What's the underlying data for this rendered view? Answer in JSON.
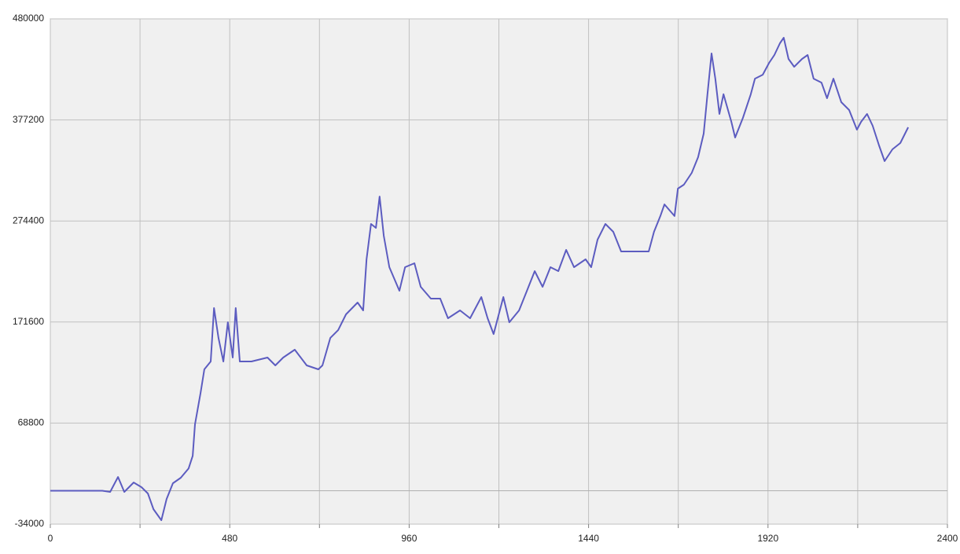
{
  "chart_data": {
    "type": "line",
    "x": [
      0,
      139,
      160,
      181,
      198,
      223,
      244,
      261,
      276,
      297,
      311,
      328,
      349,
      370,
      381,
      387,
      402,
      412,
      429,
      438,
      450,
      463,
      475,
      488,
      496,
      507,
      538,
      581,
      602,
      623,
      654,
      686,
      717,
      728,
      749,
      770,
      791,
      822,
      837,
      846,
      858,
      871,
      881,
      892,
      907,
      934,
      949,
      974,
      991,
      1018,
      1043,
      1064,
      1096,
      1123,
      1153,
      1170,
      1186,
      1212,
      1228,
      1254,
      1275,
      1296,
      1317,
      1338,
      1359,
      1380,
      1401,
      1432,
      1447,
      1464,
      1485,
      1506,
      1527,
      1559,
      1601,
      1615,
      1632,
      1643,
      1670,
      1679,
      1695,
      1716,
      1733,
      1748,
      1758,
      1769,
      1779,
      1790,
      1801,
      1822,
      1832,
      1853,
      1874,
      1885,
      1906,
      1923,
      1937,
      1952,
      1962,
      1975,
      1990,
      2011,
      2026,
      2042,
      2063,
      2078,
      2095,
      2116,
      2137,
      2158,
      2169,
      2185,
      2200,
      2217,
      2232,
      2253,
      2274,
      2295
    ],
    "values": [
      0,
      0,
      -1200,
      14000,
      -1200,
      8400,
      3600,
      -2800,
      -18800,
      -30000,
      -8400,
      7600,
      13200,
      22700,
      35500,
      67500,
      99500,
      123500,
      131500,
      185800,
      155400,
      131500,
      171400,
      135500,
      185800,
      131500,
      131500,
      135500,
      127500,
      135500,
      143500,
      127500,
      123500,
      127500,
      155400,
      163400,
      179400,
      191400,
      183400,
      235400,
      271400,
      267400,
      299300,
      259400,
      227400,
      203400,
      227400,
      231400,
      207400,
      195400,
      195400,
      175400,
      183400,
      175400,
      197000,
      175400,
      159400,
      197000,
      171400,
      183400,
      203400,
      223400,
      207400,
      227400,
      223400,
      245000,
      227400,
      235400,
      227400,
      255400,
      271400,
      263400,
      243400,
      243400,
      243400,
      263400,
      279400,
      291300,
      279400,
      307300,
      311300,
      323300,
      339300,
      363300,
      403300,
      444800,
      419200,
      383300,
      403300,
      375300,
      359300,
      379300,
      403300,
      419200,
      423200,
      435200,
      443200,
      455200,
      460800,
      439200,
      431200,
      439200,
      443200,
      419200,
      415200,
      399300,
      419200,
      395300,
      387300,
      367300,
      375300,
      383300,
      371300,
      351300,
      335300,
      347300,
      353700,
      369700
    ],
    "color": "#5c5cc0",
    "xlim": [
      0,
      2400
    ],
    "xticks": [
      0,
      480,
      960,
      1440,
      1920,
      2400
    ],
    "x_minor_ticks": [
      240,
      720,
      1200,
      1680,
      2160
    ],
    "ylim": [
      -34000,
      480000
    ],
    "yticks": [
      -34000,
      68800,
      171600,
      274400,
      377200,
      480000
    ],
    "grid": true,
    "zero_line": true
  }
}
